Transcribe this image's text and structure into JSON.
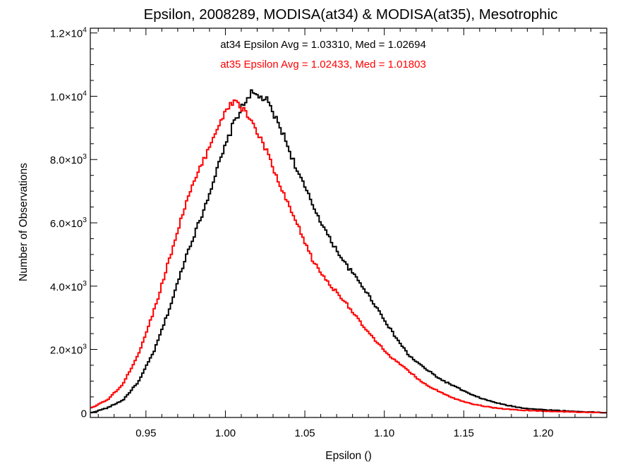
{
  "chart_data": {
    "type": "line",
    "step": true,
    "title": "Epsilon, 2008289, MODISA(at34) & MODISA(at35), Mesotrophic",
    "xlabel": "Epsilon ()",
    "ylabel": "Number of Observations",
    "xlim": [
      0.915,
      1.24
    ],
    "ylim": [
      -150,
      12150
    ],
    "x_ticks": [
      {
        "value": 0.95,
        "label": "0.95"
      },
      {
        "value": 1.0,
        "label": "1.00"
      },
      {
        "value": 1.05,
        "label": "1.05"
      },
      {
        "value": 1.1,
        "label": "1.10"
      },
      {
        "value": 1.15,
        "label": "1.15"
      },
      {
        "value": 1.2,
        "label": "1.20"
      }
    ],
    "y_ticks": [
      {
        "value": 0,
        "mant": "0",
        "exp": ""
      },
      {
        "value": 2000,
        "mant": "2.0×10",
        "exp": "3"
      },
      {
        "value": 4000,
        "mant": "4.0×10",
        "exp": "3"
      },
      {
        "value": 6000,
        "mant": "6.0×10",
        "exp": "3"
      },
      {
        "value": 8000,
        "mant": "8.0×10",
        "exp": "3"
      },
      {
        "value": 10000,
        "mant": "1.0×10",
        "exp": "4"
      },
      {
        "value": 12000,
        "mant": "1.2×10",
        "exp": "4"
      }
    ],
    "annotations": [
      {
        "text": "at34 Epsilon Avg = 1.03310, Med = 1.02694",
        "color": "#000000"
      },
      {
        "text": "at35 Epsilon Avg = 1.02433, Med = 1.01803",
        "color": "#ff0000"
      }
    ],
    "series": [
      {
        "color": "#000000",
        "x": [
          0.915,
          0.925,
          0.935,
          0.945,
          0.955,
          0.965,
          0.975,
          0.985,
          0.995,
          1.005,
          1.015,
          1.025,
          1.035,
          1.045,
          1.055,
          1.065,
          1.075,
          1.085,
          1.095,
          1.105,
          1.115,
          1.125,
          1.135,
          1.145,
          1.155,
          1.165,
          1.175,
          1.185,
          1.195,
          1.205,
          1.215,
          1.225,
          1.24
        ],
        "y": [
          0,
          150,
          400,
          1000,
          2000,
          3400,
          5000,
          6300,
          7800,
          9200,
          10100,
          9900,
          8900,
          7600,
          6500,
          5500,
          4700,
          4050,
          3300,
          2500,
          1800,
          1400,
          1050,
          800,
          550,
          380,
          250,
          160,
          110,
          80,
          50,
          30,
          0
        ]
      },
      {
        "color": "#ff0000",
        "x": [
          0.915,
          0.925,
          0.935,
          0.945,
          0.955,
          0.965,
          0.975,
          0.985,
          0.995,
          1.005,
          1.015,
          1.025,
          1.035,
          1.045,
          1.055,
          1.065,
          1.075,
          1.085,
          1.095,
          1.105,
          1.115,
          1.125,
          1.135,
          1.145,
          1.155,
          1.165,
          1.175,
          1.185,
          1.195,
          1.205,
          1.215,
          1.225,
          1.24
        ],
        "y": [
          150,
          400,
          900,
          1900,
          3300,
          5000,
          6700,
          7900,
          9100,
          9900,
          9300,
          8300,
          7000,
          5900,
          4750,
          4050,
          3500,
          2800,
          2200,
          1700,
          1300,
          900,
          650,
          420,
          280,
          180,
          120,
          80,
          60,
          45,
          30,
          15,
          0
        ]
      }
    ]
  }
}
